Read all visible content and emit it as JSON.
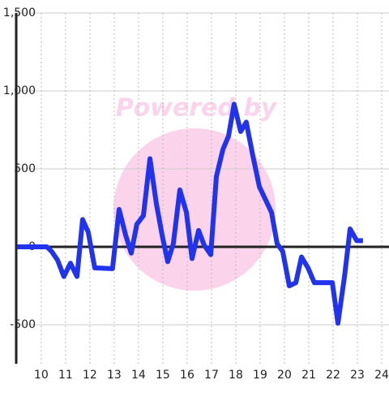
{
  "chart_data": {
    "type": "line",
    "watermark": "Powered by",
    "x": [
      9.0,
      10.23,
      10.43,
      10.67,
      10.93,
      11.2,
      11.47,
      11.7,
      11.93,
      12.2,
      12.93,
      13.2,
      13.47,
      13.7,
      13.93,
      14.2,
      14.47,
      14.73,
      14.97,
      15.2,
      15.43,
      15.7,
      15.97,
      16.2,
      16.47,
      16.7,
      16.97,
      17.2,
      17.47,
      17.7,
      17.93,
      18.2,
      18.43,
      18.7,
      18.97,
      19.23,
      19.47,
      19.7,
      19.93,
      20.2,
      20.47,
      20.7,
      20.97,
      21.23,
      21.97,
      22.2,
      22.47,
      22.7,
      22.97,
      23.23
    ],
    "series": [
      {
        "color": "#2233ee",
        "values": [
          0,
          0,
          -30,
          -85,
          -190,
          -105,
          -190,
          175,
          95,
          -135,
          -140,
          240,
          75,
          -40,
          145,
          200,
          565,
          280,
          75,
          -95,
          20,
          365,
          220,
          -75,
          105,
          10,
          -50,
          450,
          625,
          710,
          915,
          740,
          800,
          585,
          385,
          300,
          220,
          20,
          -30,
          -250,
          -230,
          -65,
          -135,
          -230,
          -230,
          -490,
          -190,
          115,
          40,
          40
        ]
      }
    ],
    "xlim": [
      8.97,
      24.3
    ],
    "xticks": [
      10,
      11,
      12,
      13,
      14,
      15,
      16,
      17,
      18,
      19,
      20,
      21,
      22,
      23,
      24
    ],
    "ylim": [
      -750,
      1500
    ],
    "yticks": [
      {
        "value": 1500,
        "label": "1,500"
      },
      {
        "value": 1000,
        "label": "1,000"
      },
      500,
      0,
      -500
    ],
    "grid": true
  }
}
